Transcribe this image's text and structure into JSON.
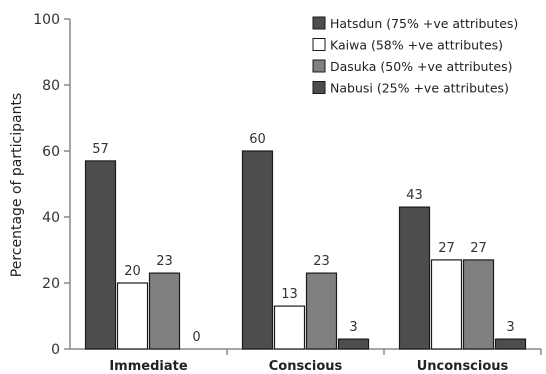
{
  "chart_data": {
    "type": "bar",
    "title": "",
    "xlabel": "",
    "ylabel": "Percentage of participants",
    "ylim": [
      0,
      100
    ],
    "yticks": [
      0,
      20,
      40,
      60,
      80,
      100
    ],
    "grid": false,
    "legend_position": "top-right",
    "categories": [
      "Immediate",
      "Conscious",
      "Unconscious"
    ],
    "series": [
      {
        "name": "Hatsdun (75% +ve attributes)",
        "values": [
          57,
          60,
          43
        ],
        "color": "#4d4d4d"
      },
      {
        "name": "Kaiwa (58% +ve attributes)",
        "values": [
          20,
          13,
          27
        ],
        "color": "#ffffff"
      },
      {
        "name": "Dasuka (50% +ve attributes)",
        "values": [
          23,
          23,
          27
        ],
        "color": "#808080"
      },
      {
        "name": "Nabusi (25% +ve attributes)",
        "values": [
          0,
          3,
          3
        ],
        "color": "#4d4d4d"
      }
    ]
  }
}
